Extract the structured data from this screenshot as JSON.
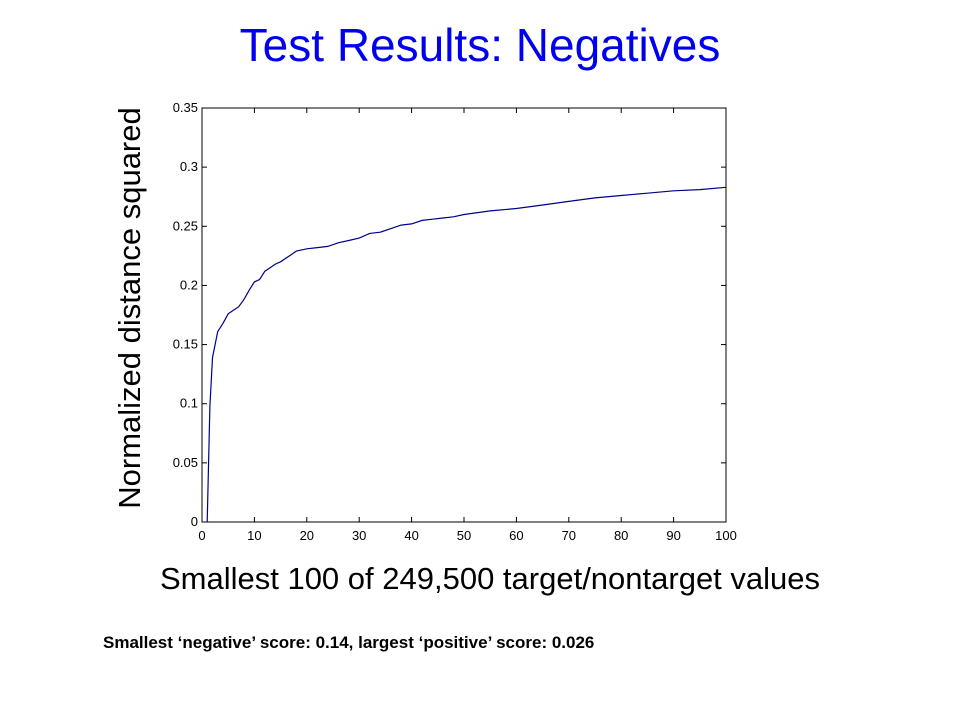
{
  "slide": {
    "title": "Test Results: Negatives",
    "caption": "Smallest ‘negative’ score: 0.14, largest ‘positive’ score: 0.026"
  },
  "chart_data": {
    "type": "line",
    "title": "",
    "xlabel": "Smallest 100 of 249,500 target/nontarget values",
    "ylabel": "Normalized distance squared",
    "xlim": [
      0,
      100
    ],
    "ylim": [
      0,
      0.35
    ],
    "xticks": [
      0,
      10,
      20,
      30,
      40,
      50,
      60,
      70,
      80,
      90,
      100
    ],
    "yticks": [
      0,
      0.05,
      0.1,
      0.15,
      0.2,
      0.25,
      0.3,
      0.35
    ],
    "xtick_labels": [
      "0",
      "10",
      "20",
      "30",
      "40",
      "50",
      "60",
      "70",
      "80",
      "90",
      "100"
    ],
    "ytick_labels": [
      "0",
      "0.05",
      "0.1",
      "0.15",
      "0.2",
      "0.25",
      "0.3",
      "0.35"
    ],
    "grid": false,
    "line_color": "#00008b",
    "series": [
      {
        "x": [
          1,
          1.5,
          2,
          3,
          4,
          5,
          6,
          7,
          8,
          9,
          10,
          11,
          12,
          13,
          14,
          15,
          16,
          17,
          18,
          19,
          20,
          22,
          24,
          26,
          28,
          30,
          32,
          34,
          36,
          38,
          40,
          42,
          44,
          46,
          48,
          50,
          55,
          60,
          65,
          70,
          75,
          80,
          85,
          90,
          95,
          100
        ],
        "y": [
          0.0,
          0.098,
          0.139,
          0.161,
          0.168,
          0.176,
          0.179,
          0.182,
          0.188,
          0.196,
          0.203,
          0.205,
          0.212,
          0.215,
          0.218,
          0.22,
          0.223,
          0.226,
          0.229,
          0.23,
          0.231,
          0.232,
          0.233,
          0.236,
          0.238,
          0.24,
          0.244,
          0.245,
          0.248,
          0.251,
          0.252,
          0.255,
          0.256,
          0.257,
          0.258,
          0.26,
          0.263,
          0.265,
          0.268,
          0.271,
          0.274,
          0.276,
          0.278,
          0.28,
          0.281,
          0.283
        ]
      }
    ]
  }
}
